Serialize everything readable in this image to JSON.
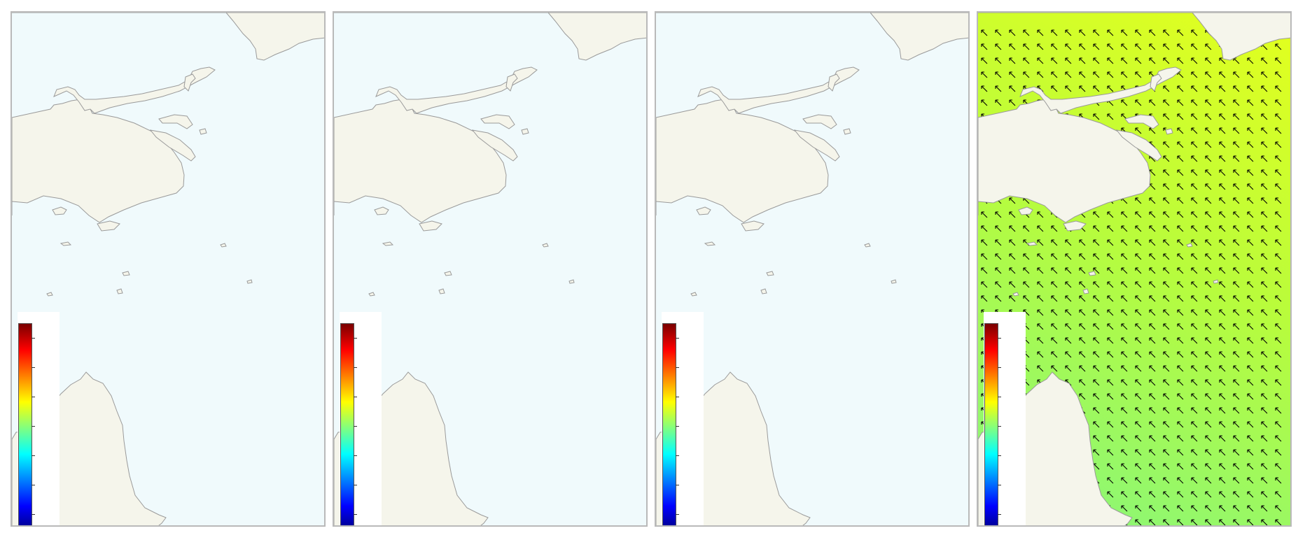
{
  "figure": {
    "colors": {
      "land": "#f5f5eb",
      "water_empty": "#f0fafc",
      "coastline": "#9a9a9a",
      "panel_border": "#b9b9b9",
      "arrow": "#000000"
    },
    "panels": [
      {
        "id": "panel-1",
        "field": "empty",
        "has_vectors": false
      },
      {
        "id": "panel-2",
        "field": "empty",
        "has_vectors": false
      },
      {
        "id": "panel-3",
        "field": "empty",
        "has_vectors": false
      },
      {
        "id": "panel-4",
        "field": "filled",
        "has_vectors": true,
        "field_colors": [
          "#e0ff20",
          "#b8fc3c",
          "#90f770"
        ],
        "vector_direction": "north-west"
      }
    ],
    "colorbar": {
      "colormap": "jet",
      "stops": [
        "#7a0000",
        "#ff0000",
        "#ff8000",
        "#ffff00",
        "#80ff80",
        "#00ffff",
        "#0080ff",
        "#0000ff",
        "#00007a"
      ],
      "tick_count": 7
    }
  }
}
